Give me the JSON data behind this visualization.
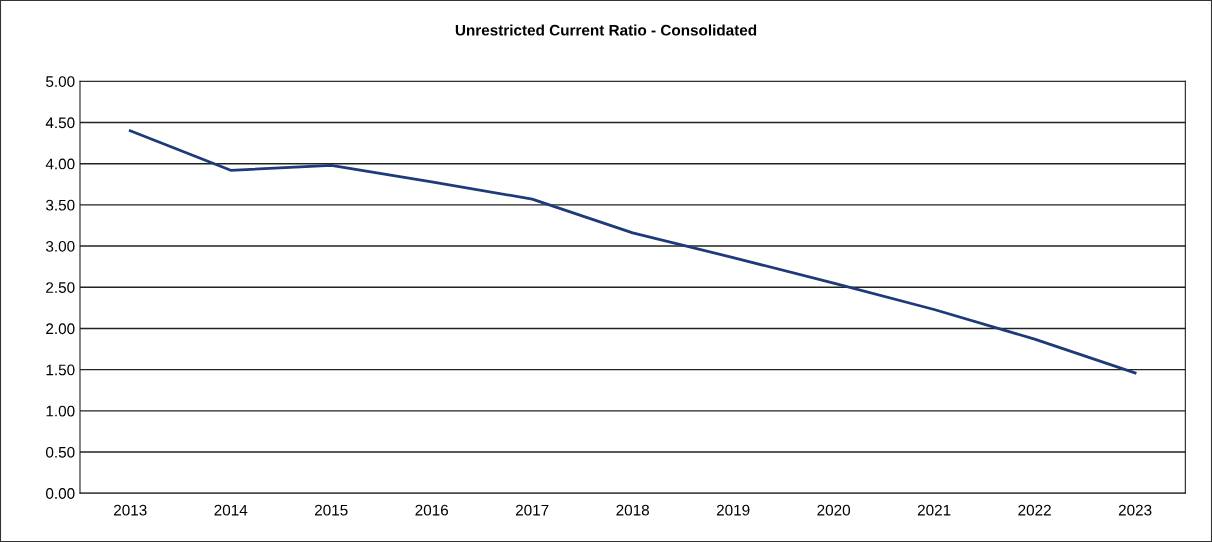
{
  "chart_data": {
    "type": "line",
    "title": "Unrestricted Current Ratio - Consolidated",
    "categories": [
      "2013",
      "2014",
      "2015",
      "2016",
      "2017",
      "2018",
      "2019",
      "2020",
      "2021",
      "2022",
      "2023"
    ],
    "series": [
      {
        "color": "#1f3a7a",
        "values": [
          4.4,
          3.92,
          3.98,
          3.78,
          3.57,
          3.16,
          2.86,
          2.55,
          2.23,
          1.87,
          1.46
        ]
      }
    ],
    "ylim": [
      0,
      5
    ],
    "yticks": [
      {
        "value": 0,
        "label": "0.00"
      },
      {
        "value": 0.5,
        "label": "0.50"
      },
      {
        "value": 1,
        "label": "1.00"
      },
      {
        "value": 1.5,
        "label": "1.50"
      },
      {
        "value": 2,
        "label": "2.00"
      },
      {
        "value": 2.5,
        "label": "2.50"
      },
      {
        "value": 3,
        "label": "3.00"
      },
      {
        "value": 3.5,
        "label": "3.50"
      },
      {
        "value": 4,
        "label": "4.00"
      },
      {
        "value": 4.5,
        "label": "4.50"
      },
      {
        "value": 5,
        "label": "5.00"
      }
    ],
    "grid": "y",
    "marker": "none",
    "line_style": "solid"
  }
}
